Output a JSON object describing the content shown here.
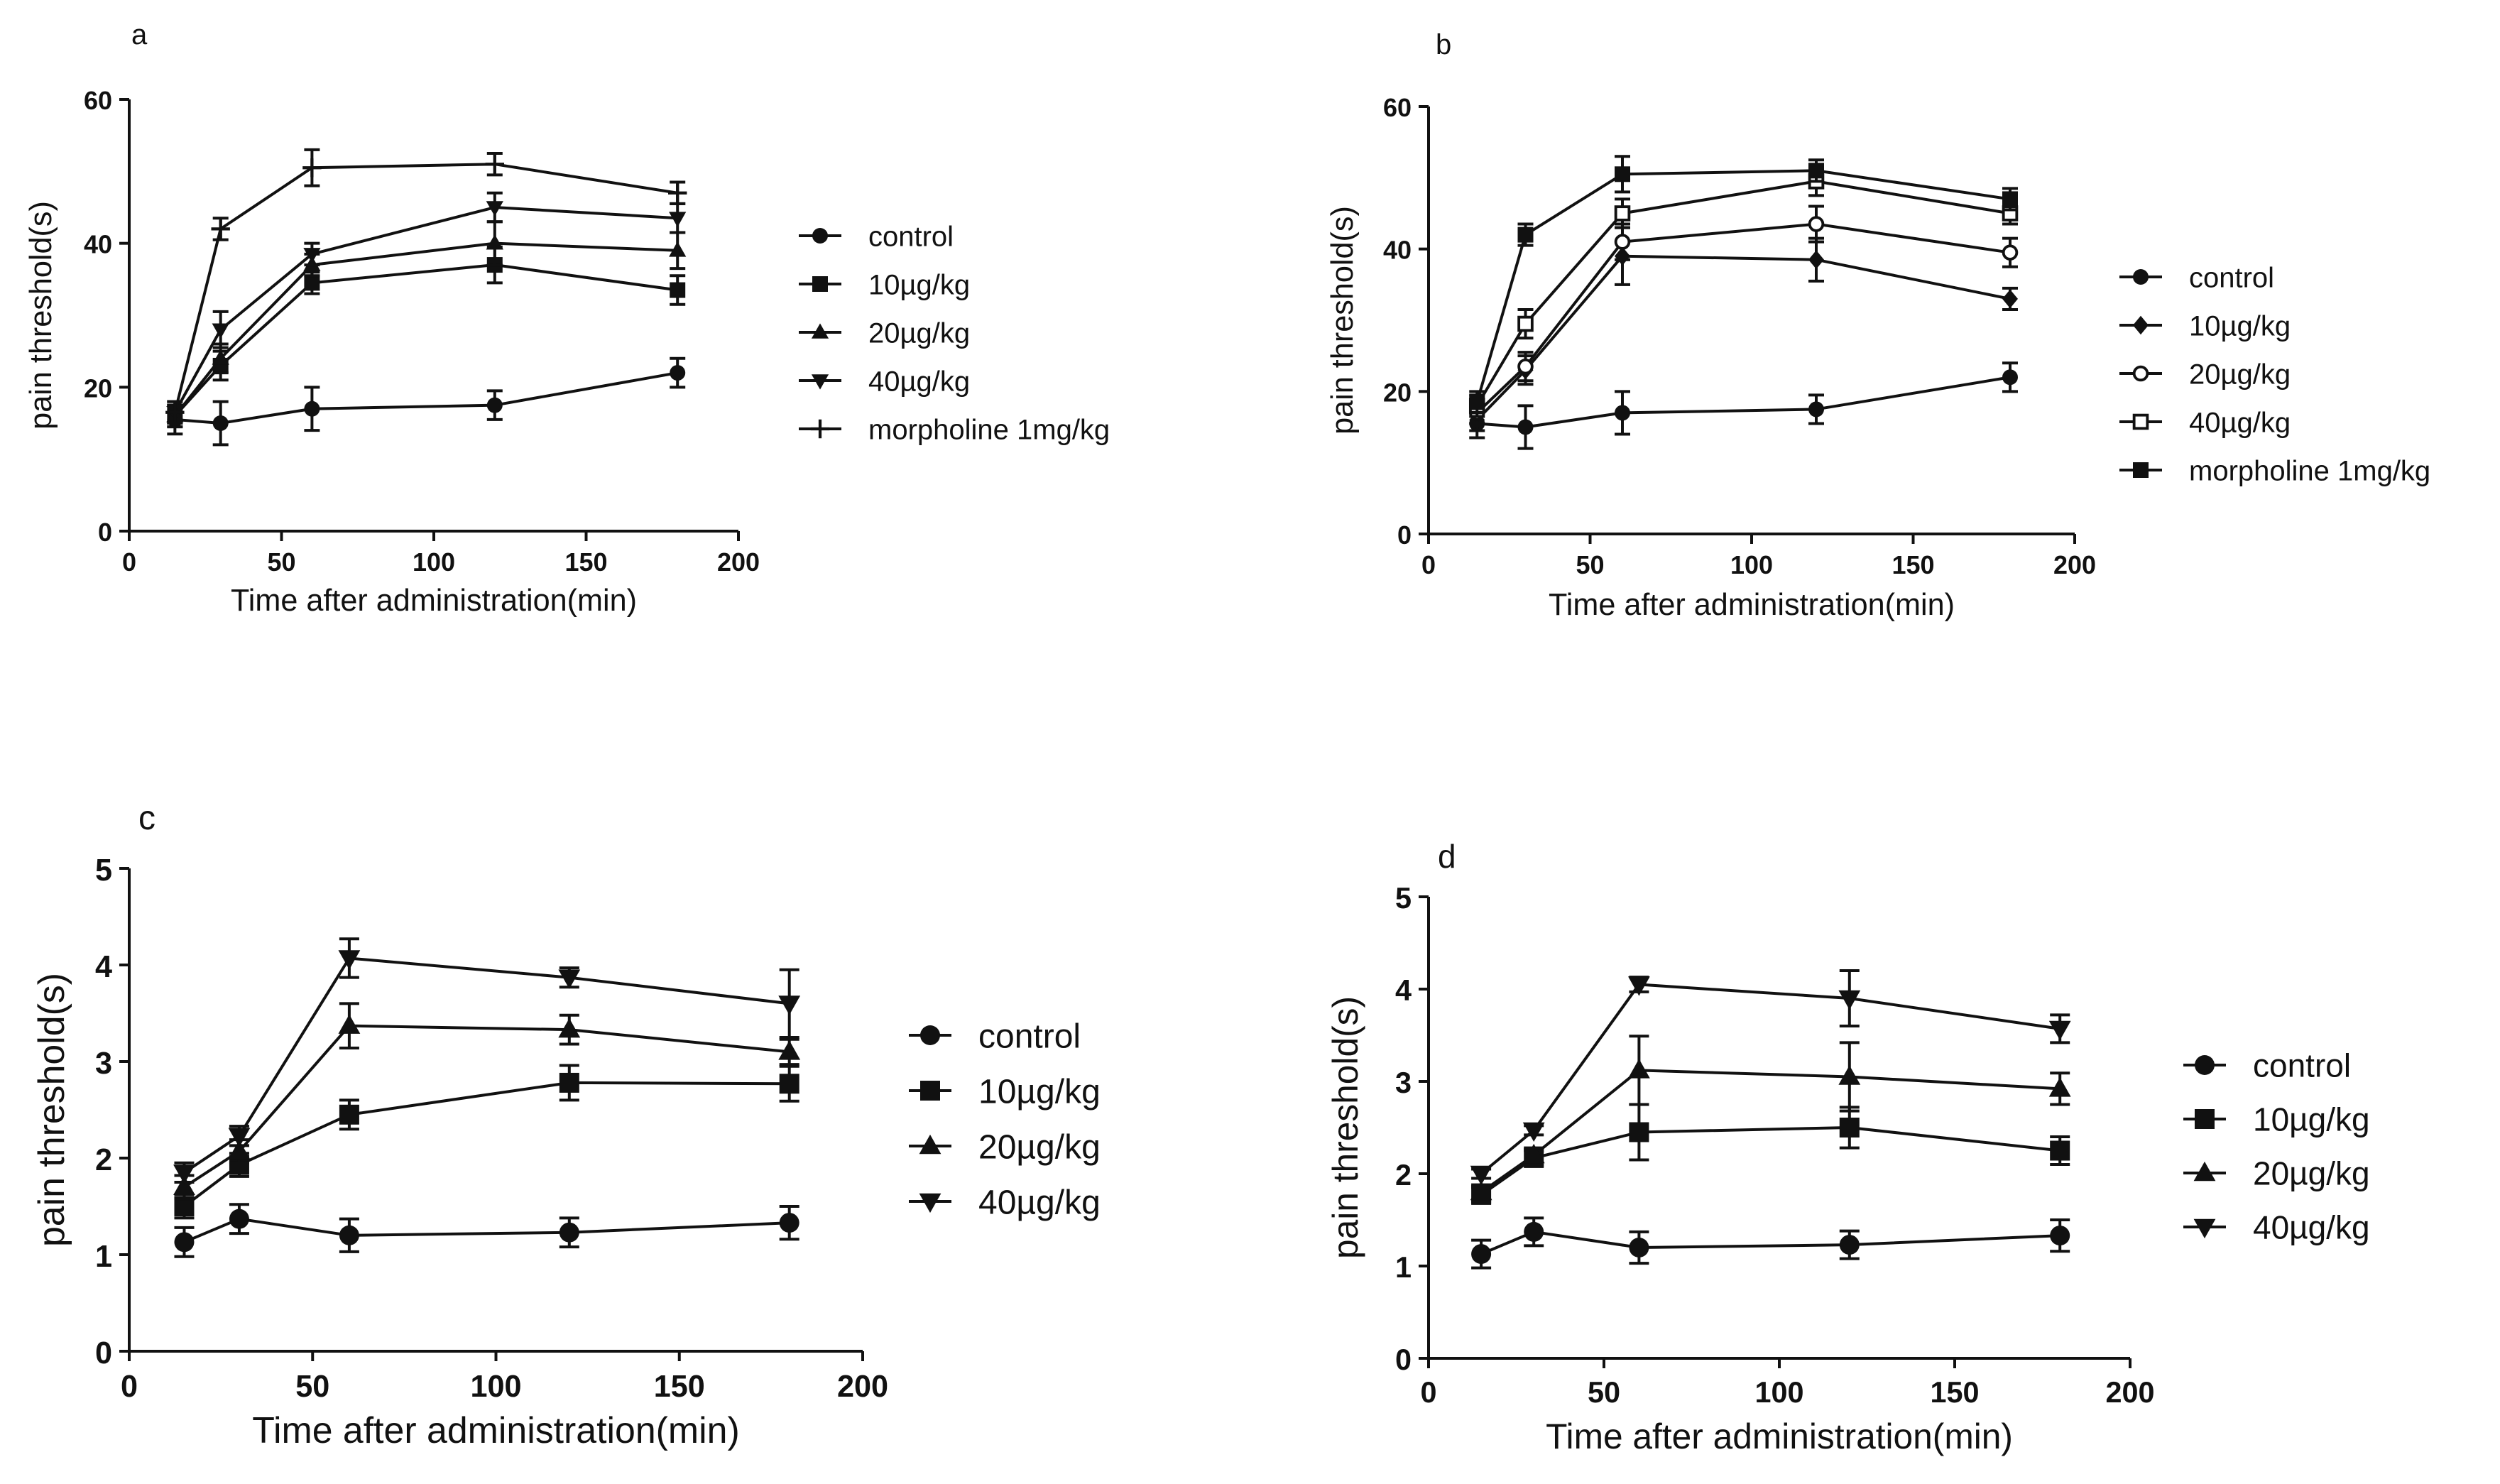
{
  "chart_data": [
    {
      "panel_label": "a",
      "type": "line",
      "x": [
        15,
        30,
        60,
        120,
        180
      ],
      "xlabel": "Time after administration(min)",
      "ylabel": "pain threshold(s)",
      "xlim": [
        0,
        200
      ],
      "ylim": [
        0,
        60
      ],
      "xticks": [
        "0",
        "50",
        "100",
        "150",
        "200"
      ],
      "yticks": [
        "0",
        "20",
        "40",
        "60"
      ],
      "legend_position": "right",
      "series": [
        {
          "name": "control",
          "marker": "circle",
          "values": [
            15.5,
            15,
            17,
            17.5,
            22
          ],
          "errors": [
            2,
            3,
            3,
            2,
            2
          ]
        },
        {
          "name": "10µg/kg",
          "marker": "square",
          "values": [
            16,
            23,
            34.5,
            37,
            33.5
          ],
          "errors": [
            1.5,
            2,
            1.5,
            2.5,
            2
          ]
        },
        {
          "name": "20µg/kg",
          "marker": "triangle-up",
          "values": [
            16,
            24,
            37,
            40,
            39
          ],
          "errors": [
            1.5,
            2,
            1.5,
            3,
            2.5
          ]
        },
        {
          "name": "40µg/kg",
          "marker": "triangle-down",
          "values": [
            16.5,
            28,
            38.5,
            45,
            43.5
          ],
          "errors": [
            1.5,
            2.5,
            1.5,
            2,
            2
          ]
        },
        {
          "name": "morpholine 1mg/kg",
          "marker": "plus",
          "values": [
            16.5,
            42,
            50.5,
            51,
            47
          ],
          "errors": [
            1.5,
            1.5,
            2.5,
            1.5,
            1.5
          ]
        }
      ]
    },
    {
      "panel_label": "b",
      "type": "line",
      "x": [
        15,
        30,
        60,
        120,
        180
      ],
      "xlabel": "Time after administration(min)",
      "ylabel": "pain threshold(s)",
      "xlim": [
        0,
        200
      ],
      "ylim": [
        0,
        60
      ],
      "xticks": [
        "0",
        "50",
        "100",
        "150",
        "200"
      ],
      "yticks": [
        "0",
        "20",
        "40",
        "60"
      ],
      "legend_position": "right",
      "series": [
        {
          "name": "control",
          "marker": "circle",
          "values": [
            15.5,
            15,
            17,
            17.5,
            22
          ],
          "errors": [
            2,
            3,
            3,
            2,
            2
          ]
        },
        {
          "name": "10µg/kg",
          "marker": "diamond",
          "values": [
            16,
            23,
            39,
            38.5,
            33
          ],
          "errors": [
            1.5,
            2,
            4,
            3,
            1.5
          ]
        },
        {
          "name": "20µg/kg",
          "marker": "circle-open",
          "values": [
            17,
            23.5,
            41,
            43.5,
            39.5
          ],
          "errors": [
            1.5,
            2,
            2.5,
            2.5,
            2
          ]
        },
        {
          "name": "40µg/kg",
          "marker": "square-open",
          "values": [
            18,
            29.5,
            45,
            49.5,
            45
          ],
          "errors": [
            1.5,
            2,
            2,
            2,
            1.5
          ]
        },
        {
          "name": "morpholine 1mg/kg",
          "marker": "square",
          "values": [
            18.5,
            42,
            50.5,
            51,
            47
          ],
          "errors": [
            1.5,
            1.5,
            2.5,
            1.5,
            1.5
          ]
        }
      ]
    },
    {
      "panel_label": "c",
      "type": "line",
      "x": [
        15,
        30,
        60,
        120,
        180
      ],
      "xlabel": "Time after administration(min)",
      "ylabel": "pain threshold(s)",
      "xlim": [
        0,
        200
      ],
      "ylim": [
        0,
        5
      ],
      "xticks": [
        "0",
        "50",
        "100",
        "150",
        "200"
      ],
      "yticks": [
        "0",
        "1",
        "2",
        "3",
        "4",
        "5"
      ],
      "legend_position": "right",
      "series": [
        {
          "name": "control",
          "marker": "circle",
          "values": [
            1.13,
            1.37,
            1.2,
            1.23,
            1.33
          ],
          "errors": [
            0.15,
            0.15,
            0.17,
            0.15,
            0.17
          ]
        },
        {
          "name": "10µg/kg",
          "marker": "square",
          "values": [
            1.5,
            1.93,
            2.45,
            2.78,
            2.77
          ],
          "errors": [
            0.12,
            0.12,
            0.15,
            0.18,
            0.18
          ]
        },
        {
          "name": "20µg/kg",
          "marker": "triangle-up",
          "values": [
            1.7,
            2.07,
            3.37,
            3.33,
            3.1
          ],
          "errors": [
            0.12,
            0.12,
            0.23,
            0.15,
            0.13
          ]
        },
        {
          "name": "40µg/kg",
          "marker": "triangle-down",
          "values": [
            1.85,
            2.23,
            4.07,
            3.87,
            3.6
          ],
          "errors": [
            0.1,
            0.1,
            0.2,
            0.1,
            0.35
          ]
        }
      ]
    },
    {
      "panel_label": "d",
      "type": "line",
      "x": [
        15,
        30,
        60,
        120,
        180
      ],
      "xlabel": "Time after administration(min)",
      "ylabel": "pain threshold(s)",
      "xlim": [
        0,
        200
      ],
      "ylim": [
        0,
        5
      ],
      "xticks": [
        "0",
        "50",
        "100",
        "150",
        "200"
      ],
      "yticks": [
        "0",
        "1",
        "2",
        "3",
        "4",
        "5"
      ],
      "legend_position": "right",
      "series": [
        {
          "name": "control",
          "marker": "circle",
          "values": [
            1.13,
            1.37,
            1.2,
            1.23,
            1.33
          ],
          "errors": [
            0.15,
            0.15,
            0.17,
            0.15,
            0.17
          ]
        },
        {
          "name": "10µg/kg",
          "marker": "square",
          "values": [
            1.77,
            2.17,
            2.45,
            2.5,
            2.25
          ],
          "errors": [
            0.08,
            0.08,
            0.3,
            0.22,
            0.15
          ]
        },
        {
          "name": "20µg/kg",
          "marker": "triangle-up",
          "values": [
            1.8,
            2.2,
            3.12,
            3.05,
            2.92
          ],
          "errors": [
            0.08,
            0.08,
            0.37,
            0.37,
            0.17
          ]
        },
        {
          "name": "40µg/kg",
          "marker": "triangle-down",
          "values": [
            2.0,
            2.47,
            4.05,
            3.9,
            3.57
          ],
          "errors": [
            0.05,
            0.05,
            0.08,
            0.3,
            0.15
          ]
        }
      ]
    }
  ]
}
